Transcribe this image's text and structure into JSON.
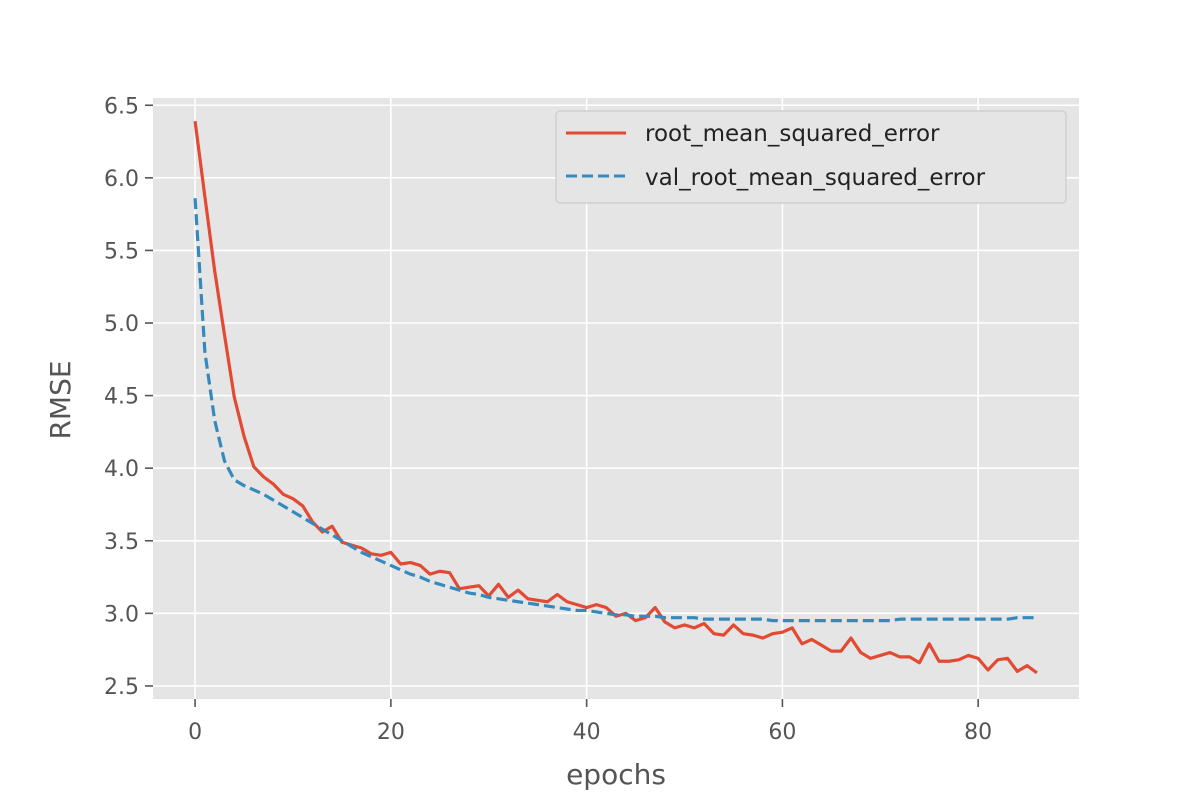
{
  "chart_data": {
    "type": "line",
    "title": "",
    "xlabel": "epochs",
    "ylabel": "RMSE",
    "xlim": [
      -4.3,
      90.3
    ],
    "ylim": [
      2.41,
      6.55
    ],
    "xticks": [
      0,
      20,
      40,
      60,
      80
    ],
    "yticks": [
      2.5,
      3.0,
      3.5,
      4.0,
      4.5,
      5.0,
      5.5,
      6.0,
      6.5
    ],
    "xtick_labels": [
      "0",
      "20",
      "40",
      "60",
      "80"
    ],
    "ytick_labels": [
      "2.5",
      "3.0",
      "3.5",
      "4.0",
      "4.5",
      "5.0",
      "5.5",
      "6.0",
      "6.5"
    ],
    "grid": true,
    "legend_position": "top-right",
    "series": [
      {
        "name": "root_mean_squared_error",
        "color": "#E24A33",
        "dash": "solid",
        "values": [
          6.39,
          5.87,
          5.36,
          4.92,
          4.49,
          4.22,
          4.01,
          3.94,
          3.89,
          3.82,
          3.79,
          3.74,
          3.63,
          3.56,
          3.6,
          3.49,
          3.47,
          3.45,
          3.41,
          3.4,
          3.42,
          3.34,
          3.35,
          3.33,
          3.27,
          3.29,
          3.28,
          3.17,
          3.18,
          3.19,
          3.12,
          3.2,
          3.11,
          3.16,
          3.1,
          3.09,
          3.08,
          3.13,
          3.08,
          3.06,
          3.04,
          3.06,
          3.04,
          2.98,
          3.0,
          2.95,
          2.97,
          3.04,
          2.94,
          2.9,
          2.92,
          2.9,
          2.93,
          2.86,
          2.85,
          2.92,
          2.86,
          2.85,
          2.83,
          2.86,
          2.87,
          2.9,
          2.79,
          2.82,
          2.78,
          2.74,
          2.74,
          2.83,
          2.73,
          2.69,
          2.71,
          2.73,
          2.7,
          2.7,
          2.66,
          2.79,
          2.67,
          2.67,
          2.68,
          2.71,
          2.69,
          2.61,
          2.68,
          2.69,
          2.6,
          2.64,
          2.59
        ]
      },
      {
        "name": "val_root_mean_squared_error",
        "color": "#348ABD",
        "dash": "dashed",
        "values": [
          5.86,
          4.8,
          4.33,
          4.05,
          3.92,
          3.88,
          3.85,
          3.82,
          3.78,
          3.74,
          3.7,
          3.66,
          3.62,
          3.58,
          3.54,
          3.5,
          3.46,
          3.42,
          3.39,
          3.36,
          3.33,
          3.3,
          3.27,
          3.25,
          3.22,
          3.2,
          3.18,
          3.16,
          3.14,
          3.13,
          3.11,
          3.1,
          3.09,
          3.08,
          3.07,
          3.06,
          3.05,
          3.04,
          3.03,
          3.02,
          3.02,
          3.01,
          3.0,
          2.99,
          2.99,
          2.98,
          2.98,
          2.98,
          2.97,
          2.97,
          2.97,
          2.97,
          2.96,
          2.96,
          2.96,
          2.96,
          2.96,
          2.96,
          2.96,
          2.95,
          2.95,
          2.95,
          2.95,
          2.95,
          2.95,
          2.95,
          2.95,
          2.95,
          2.95,
          2.95,
          2.95,
          2.95,
          2.96,
          2.96,
          2.96,
          2.96,
          2.96,
          2.96,
          2.96,
          2.96,
          2.96,
          2.96,
          2.96,
          2.96,
          2.97,
          2.97,
          2.97
        ]
      }
    ]
  }
}
